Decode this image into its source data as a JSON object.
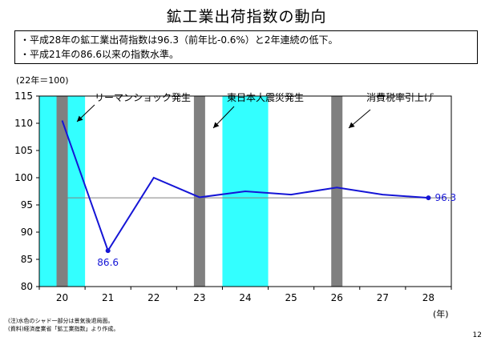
{
  "page": {
    "title": "鉱工業出荷指数の動向",
    "bullets": [
      "・平成28年の鉱工業出荷指数は96.3（前年比-0.6%）と2年連続の低下。",
      "・平成21年の86.6以来の指数水準。"
    ],
    "notes": [
      "(注)水色のシャド一部分は景気後退局面。",
      "(資料)経済産業省「鉱工業指数」より作成。"
    ],
    "page_number": "12"
  },
  "chart_data": {
    "type": "line",
    "unit_label": "(22年＝100)",
    "x_unit_label": "(年)",
    "categories": [
      "20",
      "21",
      "22",
      "23",
      "24",
      "25",
      "26",
      "27",
      "28"
    ],
    "values": [
      110.5,
      86.6,
      100.0,
      96.4,
      97.5,
      96.9,
      98.2,
      96.9,
      96.3
    ],
    "ylim": [
      80,
      115
    ],
    "yticks": [
      80,
      85,
      90,
      95,
      100,
      105,
      110,
      115
    ],
    "reference_line": 96.3,
    "data_labels": [
      {
        "index": 1,
        "text": "86.6"
      },
      {
        "index": 8,
        "text": "96.3"
      }
    ],
    "recession_shading": [
      {
        "from": -0.5,
        "to": 0.5
      },
      {
        "from": 3.5,
        "to": 4.5
      }
    ],
    "event_bars": [
      {
        "x": 0.0,
        "label": "リーマンショック発生"
      },
      {
        "x": 3.0,
        "label": "東日本大震災発生"
      },
      {
        "x": 6.0,
        "label": "消費税率引上げ"
      }
    ],
    "colors": {
      "line": "#1515d6",
      "recession": "#33ffff",
      "event_bar": "#808080",
      "reference": "#808080"
    }
  }
}
